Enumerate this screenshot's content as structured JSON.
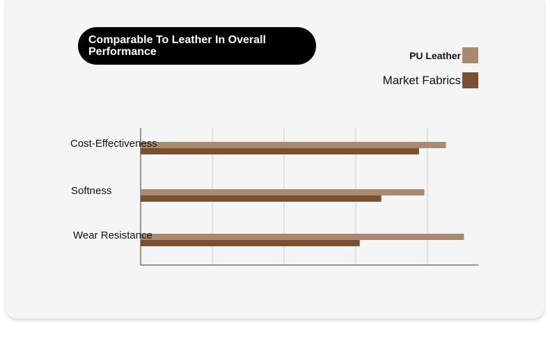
{
  "title": "Comparable To Leather In Overall Performance",
  "chart_data": {
    "type": "bar",
    "orientation": "horizontal",
    "categories": [
      "Cost-Effectiveness",
      "Softness",
      "Wear Resistance"
    ],
    "series": [
      {
        "name": "PU Leather",
        "color": "#a88a70",
        "values": [
          85,
          79,
          90
        ]
      },
      {
        "name": "Market Fabrics",
        "color": "#7b5031",
        "values": [
          77.5,
          67,
          61
        ]
      }
    ],
    "xlim": [
      0,
      94
    ],
    "grid": true,
    "legend": "top-right"
  }
}
